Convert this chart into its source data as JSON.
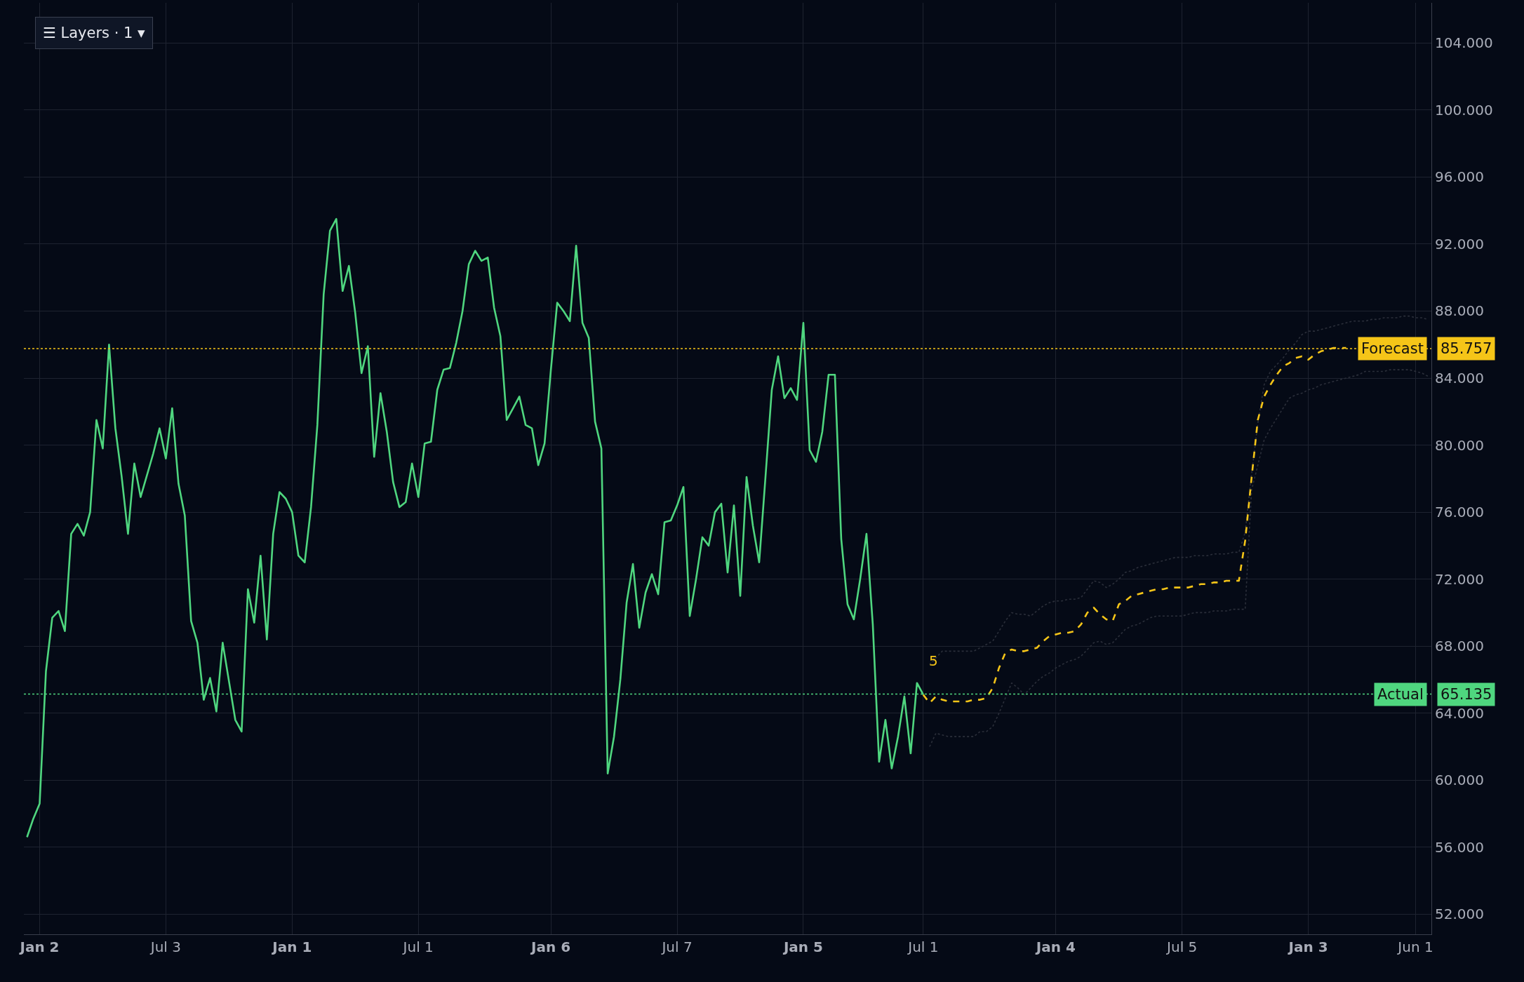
{
  "chart_data": {
    "type": "line",
    "grid": true,
    "annotations": [
      "☰ Layers · 1 ▾",
      "5",
      "85.757",
      "65.135"
    ],
    "categories": [
      null,
      null,
      "Jan 2",
      null,
      null,
      null,
      null,
      null,
      null,
      null,
      null,
      null,
      null,
      null,
      null,
      null,
      null,
      null,
      null,
      null,
      null,
      null,
      "Jul 3",
      null,
      null,
      null,
      null,
      null,
      null,
      null,
      null,
      null,
      null,
      null,
      null,
      null,
      null,
      null,
      null,
      null,
      null,
      null,
      "Jan 1",
      null,
      null,
      null,
      null,
      null,
      null,
      null,
      null,
      null,
      null,
      null,
      null,
      null,
      null,
      null,
      null,
      null,
      null,
      null,
      "Jul 1",
      null,
      null,
      null,
      null,
      null,
      null,
      null,
      null,
      null,
      null,
      null,
      null,
      null,
      null,
      null,
      null,
      null,
      null,
      null,
      null,
      "Jan 6",
      null,
      null,
      null,
      null,
      null,
      null,
      null,
      null,
      null,
      null,
      null,
      null,
      null,
      null,
      null,
      null,
      null,
      null,
      null,
      "Jul 7",
      null,
      null,
      null,
      null,
      null,
      null,
      null,
      null,
      null,
      null,
      null,
      null,
      null,
      null,
      null,
      null,
      null,
      null,
      null,
      "Jan 5",
      null,
      null,
      null,
      null,
      null,
      null,
      null,
      null,
      null,
      null,
      null,
      null,
      null,
      null,
      null,
      null,
      null,
      null,
      "Jul 1",
      null,
      null,
      null,
      null,
      null,
      null,
      null,
      null,
      null,
      null,
      null,
      null,
      null,
      null,
      null,
      null,
      null,
      null,
      null,
      null,
      "Jan 4",
      null,
      null,
      null,
      null,
      null,
      null,
      null,
      null,
      null,
      null,
      null,
      null,
      null,
      null,
      null,
      null,
      null,
      null,
      null,
      "Jul 5",
      null,
      null,
      null,
      null,
      null,
      null,
      null,
      null,
      null,
      null,
      null,
      null,
      null,
      null,
      null,
      null,
      null,
      null,
      null,
      "Jan 3",
      null,
      null,
      null,
      null,
      null,
      null,
      null,
      null,
      null,
      null,
      null,
      null,
      null,
      null,
      null,
      null,
      "Jun 1",
      null,
      null
    ],
    "ylim": [
      50.8,
      106.4
    ],
    "yticks": [
      {
        "value": 52,
        "label": "52.000"
      },
      {
        "value": 56,
        "label": "56.000"
      },
      {
        "value": 60,
        "label": "60.000"
      },
      {
        "value": 64,
        "label": "64.000"
      },
      {
        "value": 68,
        "label": "68.000"
      },
      {
        "value": 72,
        "label": "72.000"
      },
      {
        "value": 76,
        "label": "76.000"
      },
      {
        "value": 80,
        "label": "80.000"
      },
      {
        "value": 84,
        "label": "84.000"
      },
      {
        "value": 88,
        "label": "88.000"
      },
      {
        "value": 92,
        "label": "92.000"
      },
      {
        "value": 96,
        "label": "96.000"
      },
      {
        "value": 100,
        "label": "100.000"
      },
      {
        "value": 104,
        "label": "104.000"
      }
    ],
    "series": [
      {
        "color": "#4fd67f",
        "line_style": "solid",
        "values": [
          56.6,
          57.7,
          58.6,
          66.5,
          69.7,
          70.1,
          68.9,
          74.7,
          75.3,
          74.6,
          76.0,
          81.5,
          79.8,
          86.0,
          81.0,
          78.1,
          74.7,
          78.9,
          76.9,
          78.2,
          79.5,
          81.0,
          79.2,
          82.2,
          77.7,
          75.8,
          69.5,
          68.2,
          64.8,
          66.1,
          64.1,
          68.2,
          65.9,
          63.6,
          62.9,
          71.4,
          69.4,
          73.4,
          68.4,
          74.7,
          77.2,
          76.8,
          76.0,
          73.4,
          73.0,
          76.3,
          81.2,
          89.0,
          92.8,
          93.5,
          89.2,
          90.7,
          87.9,
          84.3,
          85.9,
          79.3,
          83.1,
          80.8,
          77.8,
          76.3,
          76.6,
          78.9,
          76.9,
          80.1,
          80.2,
          83.3,
          84.5,
          84.6,
          86.1,
          88.0,
          90.8,
          91.6,
          91.0,
          91.2,
          88.2,
          86.5,
          81.5,
          82.2,
          82.9,
          81.2,
          81.0,
          78.8,
          80.1,
          84.5,
          88.5,
          88.0,
          87.4,
          91.9,
          87.3,
          86.4,
          81.4,
          79.8,
          60.4,
          62.6,
          66.0,
          70.6,
          72.9,
          69.1,
          71.2,
          72.3,
          71.1,
          75.4,
          75.5,
          76.4,
          77.5,
          69.8,
          72.0,
          74.5,
          74.0,
          76.0,
          76.5,
          72.4,
          76.4,
          71.0,
          78.1,
          75.2,
          73.0,
          78.1,
          83.3,
          85.3,
          82.8,
          83.4,
          82.7,
          87.3,
          79.7,
          79.0,
          80.8,
          84.2,
          84.2,
          74.4,
          70.5,
          69.6,
          72.0,
          74.7,
          69.3,
          61.1,
          63.6,
          60.7,
          62.6,
          65.0,
          61.6,
          65.8,
          65.1,
          null,
          null,
          null,
          null,
          null,
          null,
          null,
          null,
          null,
          null,
          null,
          null,
          null,
          null,
          null,
          null,
          null,
          null,
          null,
          null,
          null,
          null,
          null,
          null,
          null,
          null,
          null,
          null,
          null,
          null,
          null,
          null,
          null,
          null,
          null,
          null,
          null,
          null,
          null,
          null,
          null,
          null,
          null,
          null,
          null,
          null,
          null,
          null,
          null,
          null,
          null,
          null,
          null,
          null,
          null,
          null,
          null,
          null,
          null,
          null,
          null,
          null,
          null,
          null,
          null,
          null,
          null,
          null,
          null,
          null,
          null,
          null,
          null,
          null,
          null,
          null,
          null,
          null,
          null,
          null
        ]
      },
      {
        "color": "#2b2f3a",
        "line_style": "dotted",
        "values": [
          null,
          null,
          null,
          null,
          null,
          null,
          null,
          null,
          null,
          null,
          null,
          null,
          null,
          null,
          null,
          null,
          null,
          null,
          null,
          null,
          null,
          null,
          null,
          null,
          null,
          null,
          null,
          null,
          null,
          null,
          null,
          null,
          null,
          null,
          null,
          null,
          null,
          null,
          null,
          null,
          null,
          null,
          null,
          null,
          null,
          null,
          null,
          null,
          null,
          null,
          null,
          null,
          null,
          null,
          null,
          null,
          null,
          null,
          null,
          null,
          null,
          null,
          null,
          null,
          null,
          null,
          null,
          null,
          null,
          null,
          null,
          null,
          null,
          null,
          null,
          null,
          null,
          null,
          null,
          null,
          null,
          null,
          null,
          null,
          null,
          null,
          null,
          null,
          null,
          null,
          null,
          null,
          null,
          null,
          null,
          null,
          null,
          null,
          null,
          null,
          null,
          null,
          null,
          null,
          null,
          null,
          null,
          null,
          null,
          null,
          null,
          null,
          null,
          null,
          null,
          null,
          null,
          null,
          null,
          null,
          null,
          null,
          null,
          null,
          null,
          null,
          null,
          null,
          null,
          null,
          null,
          null,
          null,
          null,
          null,
          null,
          null,
          null,
          null,
          null,
          null,
          null,
          null,
          66.9,
          67.3,
          67.7,
          67.7,
          67.7,
          67.7,
          67.7,
          67.7,
          67.9,
          68.1,
          68.3,
          68.9,
          69.5,
          70.0,
          69.9,
          69.9,
          69.8,
          70.1,
          70.4,
          70.6,
          70.7,
          70.7,
          70.8,
          70.8,
          70.9,
          71.4,
          71.9,
          71.8,
          71.5,
          71.7,
          72.0,
          72.4,
          72.5,
          72.7,
          72.8,
          72.9,
          73.0,
          73.1,
          73.2,
          73.3,
          73.3,
          73.3,
          73.4,
          73.4,
          73.4,
          73.5,
          73.5,
          73.5,
          73.6,
          73.6,
          74.8,
          78.2,
          81.3,
          83.6,
          84.4,
          84.8,
          85.2,
          85.7,
          86.1,
          86.6,
          86.8,
          86.8,
          86.9,
          87.0,
          87.1,
          87.2,
          87.3,
          87.4,
          87.4,
          87.4,
          87.5,
          87.5,
          87.6,
          87.6,
          87.6,
          87.7,
          87.7,
          87.6,
          87.6,
          87.5
        ]
      },
      {
        "color": "#2b2f3a",
        "line_style": "dotted",
        "values": [
          null,
          null,
          null,
          null,
          null,
          null,
          null,
          null,
          null,
          null,
          null,
          null,
          null,
          null,
          null,
          null,
          null,
          null,
          null,
          null,
          null,
          null,
          null,
          null,
          null,
          null,
          null,
          null,
          null,
          null,
          null,
          null,
          null,
          null,
          null,
          null,
          null,
          null,
          null,
          null,
          null,
          null,
          null,
          null,
          null,
          null,
          null,
          null,
          null,
          null,
          null,
          null,
          null,
          null,
          null,
          null,
          null,
          null,
          null,
          null,
          null,
          null,
          null,
          null,
          null,
          null,
          null,
          null,
          null,
          null,
          null,
          null,
          null,
          null,
          null,
          null,
          null,
          null,
          null,
          null,
          null,
          null,
          null,
          null,
          null,
          null,
          null,
          null,
          null,
          null,
          null,
          null,
          null,
          null,
          null,
          null,
          null,
          null,
          null,
          null,
          null,
          null,
          null,
          null,
          null,
          null,
          null,
          null,
          null,
          null,
          null,
          null,
          null,
          null,
          null,
          null,
          null,
          null,
          null,
          null,
          null,
          null,
          null,
          null,
          null,
          null,
          null,
          null,
          null,
          null,
          null,
          null,
          null,
          null,
          null,
          null,
          null,
          null,
          null,
          null,
          null,
          null,
          null,
          62.0,
          62.8,
          62.7,
          62.6,
          62.6,
          62.6,
          62.6,
          62.6,
          62.9,
          62.9,
          63.2,
          64.0,
          64.9,
          65.8,
          65.5,
          65.1,
          65.5,
          65.9,
          66.2,
          66.4,
          66.7,
          66.9,
          67.1,
          67.2,
          67.4,
          67.8,
          68.2,
          68.3,
          68.1,
          68.2,
          68.6,
          69.0,
          69.2,
          69.3,
          69.5,
          69.7,
          69.8,
          69.8,
          69.8,
          69.8,
          69.8,
          69.9,
          70.0,
          70.0,
          70.0,
          70.1,
          70.1,
          70.1,
          70.2,
          70.2,
          70.2,
          77.3,
          78.8,
          80.3,
          81.0,
          81.6,
          82.2,
          82.8,
          83.0,
          83.1,
          83.3,
          83.4,
          83.6,
          83.7,
          83.8,
          83.9,
          84.0,
          84.1,
          84.2,
          84.4,
          84.4,
          84.4,
          84.4,
          84.5,
          84.5,
          84.5,
          84.5,
          84.4,
          84.3,
          84.1
        ]
      },
      {
        "color": "#f5c518",
        "line_style": "dashed",
        "values": [
          null,
          null,
          null,
          null,
          null,
          null,
          null,
          null,
          null,
          null,
          null,
          null,
          null,
          null,
          null,
          null,
          null,
          null,
          null,
          null,
          null,
          null,
          null,
          null,
          null,
          null,
          null,
          null,
          null,
          null,
          null,
          null,
          null,
          null,
          null,
          null,
          null,
          null,
          null,
          null,
          null,
          null,
          null,
          null,
          null,
          null,
          null,
          null,
          null,
          null,
          null,
          null,
          null,
          null,
          null,
          null,
          null,
          null,
          null,
          null,
          null,
          null,
          null,
          null,
          null,
          null,
          null,
          null,
          null,
          null,
          null,
          null,
          null,
          null,
          null,
          null,
          null,
          null,
          null,
          null,
          null,
          null,
          null,
          null,
          null,
          null,
          null,
          null,
          null,
          null,
          null,
          null,
          null,
          null,
          null,
          null,
          null,
          null,
          null,
          null,
          null,
          null,
          null,
          null,
          null,
          null,
          null,
          null,
          null,
          null,
          null,
          null,
          null,
          null,
          null,
          null,
          null,
          null,
          null,
          null,
          null,
          null,
          null,
          null,
          null,
          null,
          null,
          null,
          null,
          null,
          null,
          null,
          null,
          null,
          null,
          null,
          null,
          null,
          null,
          null,
          null,
          null,
          65.1,
          64.6,
          65.0,
          64.8,
          64.7,
          64.7,
          64.7,
          64.7,
          64.8,
          64.8,
          64.9,
          65.5,
          66.7,
          67.6,
          67.8,
          67.7,
          67.7,
          67.8,
          67.9,
          68.3,
          68.6,
          68.7,
          68.8,
          68.8,
          68.9,
          69.3,
          70.0,
          70.3,
          69.9,
          69.6,
          69.5,
          70.5,
          70.7,
          71.0,
          71.1,
          71.2,
          71.3,
          71.4,
          71.4,
          71.5,
          71.5,
          71.5,
          71.5,
          71.6,
          71.7,
          71.7,
          71.8,
          71.8,
          71.9,
          71.9,
          71.9,
          74.3,
          78.0,
          81.5,
          82.9,
          83.6,
          84.2,
          84.7,
          84.9,
          85.2,
          85.3,
          85.1,
          85.4,
          85.6,
          85.7,
          85.8,
          85.8,
          85.8,
          null,
          null,
          null,
          null,
          null,
          null,
          null,
          null,
          null,
          null,
          null,
          null,
          null
        ]
      }
    ],
    "ref_lines": [
      {
        "axis": "y",
        "value": 85.757,
        "label": "Forecast",
        "color": "#f5c518",
        "line_style": "dotted"
      },
      {
        "axis": "y",
        "value": 65.135,
        "label": "Actual",
        "color": "#4fd67f",
        "line_style": "dotted"
      }
    ]
  }
}
